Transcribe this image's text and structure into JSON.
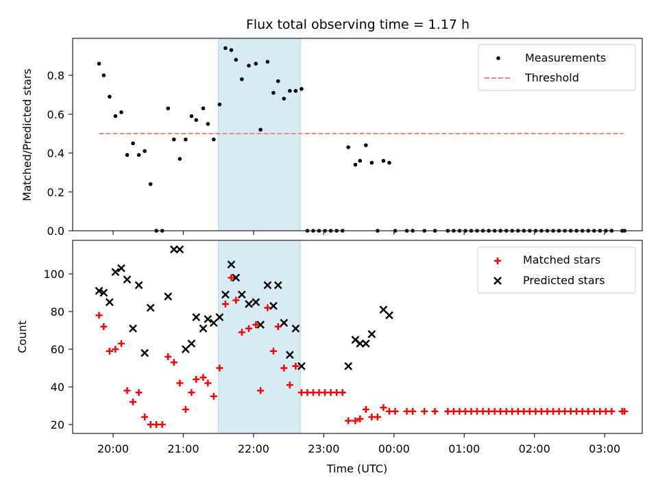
{
  "chart_data": [
    {
      "type": "scatter",
      "title": "Flux total observing time = 1.17 h",
      "xlabel": "",
      "ylabel": "Matched/Predicted stars",
      "ylim": [
        0,
        0.99
      ],
      "yticks": [
        0.0,
        0.2,
        0.4,
        0.6,
        0.8
      ],
      "ytick_labels": [
        "0.0",
        "0.2",
        "0.4",
        "0.6",
        "0.8"
      ],
      "legend": {
        "placement": "top-right",
        "entries": [
          "Measurements",
          "Threshold"
        ]
      },
      "highlight_span": {
        "start": "21:30",
        "end": "22:40",
        "color": "#add8e6"
      },
      "threshold": {
        "value": 0.5,
        "x_start": "19:48",
        "x_end": "03:16",
        "color": "#ff7f7f"
      },
      "series": [
        {
          "name": "Measurements",
          "color": "#000000",
          "x": [
            "19:48",
            "19:52",
            "19:57",
            "20:02",
            "20:07",
            "20:12",
            "20:17",
            "20:22",
            "20:27",
            "20:32",
            "20:37",
            "20:42",
            "20:47",
            "20:52",
            "20:57",
            "21:02",
            "21:07",
            "21:11",
            "21:17",
            "21:21",
            "21:26",
            "21:31",
            "21:36",
            "21:41",
            "21:45",
            "21:50",
            "21:56",
            "22:02",
            "22:06",
            "22:12",
            "22:17",
            "22:21",
            "22:26",
            "22:31",
            "22:36",
            "22:41",
            "22:46",
            "22:51",
            "22:56",
            "23:01",
            "23:06",
            "23:11",
            "23:16",
            "23:21",
            "23:27",
            "23:31",
            "23:36",
            "23:41",
            "23:46",
            "23:51",
            "23:56",
            "00:01",
            "00:11",
            "00:16",
            "00:26",
            "00:35",
            "00:46",
            "00:51",
            "00:56",
            "01:01",
            "01:06",
            "01:11",
            "01:16",
            "01:21",
            "01:26",
            "01:31",
            "01:36",
            "01:41",
            "01:46",
            "01:51",
            "01:56",
            "02:01",
            "02:06",
            "02:11",
            "02:16",
            "02:21",
            "02:26",
            "02:31",
            "02:36",
            "02:41",
            "02:46",
            "02:51",
            "02:56",
            "03:01",
            "03:06",
            "03:15",
            "03:17"
          ],
          "values": [
            0.86,
            0.8,
            0.69,
            0.59,
            0.61,
            0.39,
            0.45,
            0.39,
            0.41,
            0.24,
            0,
            0,
            0.63,
            0.47,
            0.37,
            0.47,
            0.59,
            0.57,
            0.63,
            0.55,
            0.47,
            0.65,
            0.94,
            0.93,
            0.88,
            0.78,
            0.85,
            0.86,
            0.52,
            0.87,
            0.71,
            0.77,
            0.68,
            0.72,
            0.72,
            0.73,
            0,
            0,
            0,
            0,
            0,
            0,
            0,
            0.43,
            0.34,
            0.36,
            0.44,
            0.35,
            0,
            0.36,
            0.35,
            0,
            0,
            0,
            0,
            0,
            0,
            0,
            0,
            0,
            0,
            0,
            0,
            0,
            0,
            0,
            0,
            0,
            0,
            0,
            0,
            0,
            0,
            0,
            0,
            0,
            0,
            0,
            0,
            0,
            0,
            0,
            0,
            0,
            0,
            0,
            0
          ]
        }
      ]
    },
    {
      "type": "scatter",
      "title": "",
      "xlabel": "Time (UTC)",
      "ylabel": "Count",
      "ylim": [
        15,
        117
      ],
      "yticks": [
        20,
        40,
        60,
        80,
        100
      ],
      "ytick_labels": [
        "20",
        "40",
        "60",
        "80",
        "100"
      ],
      "xticks": [
        "20:00",
        "21:00",
        "22:00",
        "23:00",
        "00:00",
        "01:00",
        "02:00",
        "03:00"
      ],
      "xlim": [
        "19:26",
        "03:40"
      ],
      "legend": {
        "placement": "top-right",
        "entries": [
          "Matched stars",
          "Predicted stars"
        ]
      },
      "highlight_span": {
        "start": "21:30",
        "end": "22:40",
        "color": "#add8e6"
      },
      "series": [
        {
          "name": "Matched stars",
          "marker": "+",
          "color": "#ff0000",
          "x": [
            "19:48",
            "19:52",
            "19:57",
            "20:02",
            "20:07",
            "20:12",
            "20:17",
            "20:22",
            "20:27",
            "20:32",
            "20:37",
            "20:42",
            "20:47",
            "20:52",
            "20:57",
            "21:02",
            "21:07",
            "21:11",
            "21:17",
            "21:21",
            "21:26",
            "21:31",
            "21:36",
            "21:41",
            "21:45",
            "21:50",
            "21:56",
            "22:02",
            "22:06",
            "22:12",
            "22:17",
            "22:21",
            "22:26",
            "22:31",
            "22:36",
            "22:41",
            "22:46",
            "22:51",
            "22:56",
            "23:01",
            "23:06",
            "23:11",
            "23:16",
            "23:21",
            "23:27",
            "23:31",
            "23:36",
            "23:41",
            "23:46",
            "23:51",
            "23:56",
            "00:01",
            "00:11",
            "00:16",
            "00:26",
            "00:35",
            "00:46",
            "00:51",
            "00:56",
            "01:01",
            "01:06",
            "01:11",
            "01:16",
            "01:21",
            "01:26",
            "01:31",
            "01:36",
            "01:41",
            "01:46",
            "01:51",
            "01:56",
            "02:01",
            "02:06",
            "02:11",
            "02:16",
            "02:21",
            "02:26",
            "02:31",
            "02:36",
            "02:41",
            "02:46",
            "02:51",
            "02:56",
            "03:01",
            "03:06",
            "03:15",
            "03:17"
          ],
          "values": [
            78,
            72,
            59,
            60,
            63,
            38,
            32,
            37,
            24,
            20,
            20,
            20,
            56,
            53,
            42,
            28,
            37,
            44,
            45,
            42,
            35,
            50,
            84,
            98,
            86,
            69,
            71,
            73,
            38,
            82,
            59,
            72,
            50,
            41,
            51,
            37,
            37,
            37,
            37,
            37,
            37,
            37,
            37,
            22,
            22,
            23,
            28,
            24,
            24,
            29,
            27,
            27,
            27,
            27,
            27,
            27,
            27,
            27,
            27,
            27,
            27,
            27,
            27,
            27,
            27,
            27,
            27,
            27,
            27,
            27,
            27,
            27,
            27,
            27,
            27,
            27,
            27,
            27,
            27,
            27,
            27,
            27,
            27,
            27,
            27,
            27,
            27
          ]
        },
        {
          "name": "Predicted stars",
          "marker": "x",
          "color": "#000000",
          "x": [
            "19:48",
            "19:52",
            "19:57",
            "20:02",
            "20:07",
            "20:12",
            "20:17",
            "20:22",
            "20:27",
            "20:32",
            "20:47",
            "20:52",
            "20:57",
            "21:02",
            "21:07",
            "21:11",
            "21:17",
            "21:21",
            "21:26",
            "21:31",
            "21:36",
            "21:41",
            "21:45",
            "21:50",
            "21:56",
            "22:02",
            "22:06",
            "22:12",
            "22:17",
            "22:21",
            "22:26",
            "22:31",
            "22:36",
            "22:41",
            "23:21",
            "23:27",
            "23:31",
            "23:36",
            "23:41",
            "23:51",
            "23:56"
          ],
          "values": [
            91,
            90,
            85,
            101,
            103,
            97,
            71,
            94,
            58,
            82,
            88,
            113,
            113,
            60,
            63,
            77,
            71,
            76,
            74,
            77,
            89,
            105,
            98,
            89,
            84,
            85,
            73,
            94,
            83,
            94,
            74,
            57,
            71,
            51,
            51,
            65,
            63,
            63,
            68,
            81,
            78
          ]
        }
      ]
    }
  ]
}
